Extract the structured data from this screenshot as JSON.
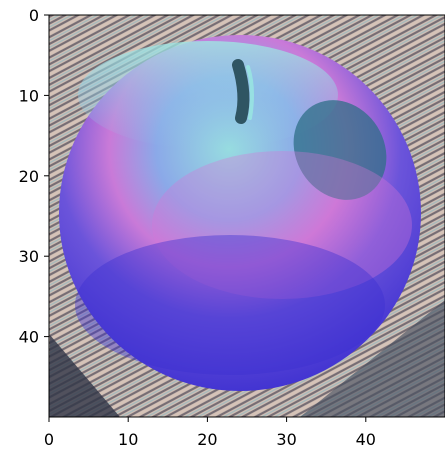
{
  "chart_data": {
    "type": "image",
    "xlim": [
      0,
      50
    ],
    "ylim": [
      50,
      0
    ],
    "x_ticks": [
      0,
      10,
      20,
      30,
      40
    ],
    "y_ticks": [
      0,
      10,
      20,
      30,
      40
    ],
    "x_tick_labels": [
      "0",
      "10",
      "20",
      "30",
      "40"
    ],
    "y_tick_labels": [
      "0",
      "10",
      "20",
      "30",
      "40"
    ],
    "grid": false,
    "title": "",
    "xlabel": "",
    "ylabel": "",
    "subject": "pixelated false-color apple",
    "colors": {
      "background_light": "#d9c6bd",
      "background_dark": "#2f3446",
      "background_teal": "#6fa9b6",
      "apple_top_teal": "#8fd9d6",
      "apple_pink": "#d57ad4",
      "apple_blue": "#5845d8",
      "apple_deep_blue": "#3b2ed0",
      "stem": "#2f5563"
    }
  }
}
